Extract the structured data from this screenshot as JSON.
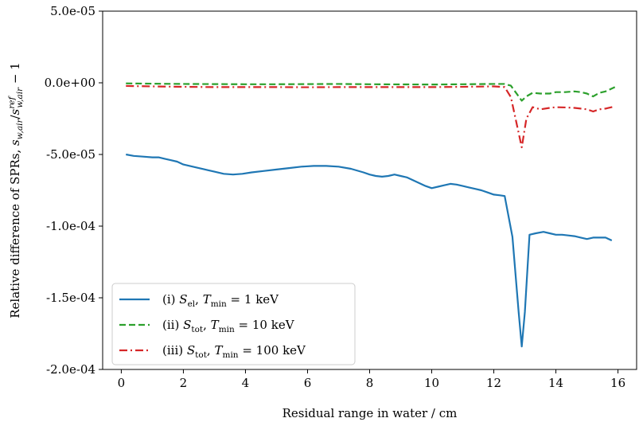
{
  "chart_data": {
    "type": "line",
    "xlabel": "Residual range in water / cm",
    "ylabel": {
      "prefix": "Relative difference of SPRs, ",
      "num_main": "s",
      "num_sub": "w,air",
      "den_main": "s",
      "den_sub": "w,air",
      "den_sup": "ref",
      "suffix": " − 1"
    },
    "xlim": [
      -0.6,
      16.6
    ],
    "ylim": [
      -0.0002,
      5e-05
    ],
    "x_ticks": [
      0,
      2,
      4,
      6,
      8,
      10,
      12,
      14,
      16
    ],
    "x_tick_labels": [
      "0",
      "2",
      "4",
      "6",
      "8",
      "10",
      "12",
      "14",
      "16"
    ],
    "y_ticks": [
      5e-05,
      0,
      -5e-05,
      -0.0001,
      -0.00015,
      -0.0002
    ],
    "y_tick_labels": [
      "5.0e-05",
      "0.0e+00",
      "-5.0e-05",
      "-1.0e-04",
      "-1.5e-04",
      "-2.0e-04"
    ],
    "grid": false,
    "legend_position": "bottom-left",
    "series": [
      {
        "legend_prefix": "(i) ",
        "legend_main": "S",
        "legend_sub": "el",
        "legend_mid": ", T",
        "legend_sub2": "min",
        "legend_suffix": " = 1 keV",
        "color": "#1f77b4",
        "dash": "solid",
        "x": [
          0.15,
          0.4,
          0.7,
          1.0,
          1.2,
          1.4,
          1.6,
          1.8,
          2.0,
          2.4,
          2.8,
          3.0,
          3.3,
          3.6,
          3.9,
          4.2,
          4.6,
          5.0,
          5.4,
          5.8,
          6.2,
          6.6,
          7.0,
          7.4,
          7.8,
          8.0,
          8.2,
          8.4,
          8.6,
          8.8,
          9.0,
          9.2,
          9.4,
          9.6,
          9.8,
          10.0,
          10.2,
          10.4,
          10.6,
          10.8,
          11.0,
          11.2,
          11.4,
          11.6,
          11.8,
          12.0,
          12.2,
          12.35,
          12.6,
          12.8,
          12.9,
          13.0,
          13.15,
          13.35,
          13.6,
          13.8,
          14.0,
          14.2,
          14.4,
          14.6,
          14.8,
          15.0,
          15.2,
          15.4,
          15.6,
          15.8
        ],
        "y": [
          -5e-05,
          -5.1e-05,
          -5.15e-05,
          -5.2e-05,
          -5.2e-05,
          -5.3e-05,
          -5.4e-05,
          -5.5e-05,
          -5.7e-05,
          -5.9e-05,
          -6.1e-05,
          -6.2e-05,
          -6.35e-05,
          -6.4e-05,
          -6.35e-05,
          -6.25e-05,
          -6.15e-05,
          -6.05e-05,
          -5.95e-05,
          -5.85e-05,
          -5.8e-05,
          -5.8e-05,
          -5.85e-05,
          -6e-05,
          -6.25e-05,
          -6.4e-05,
          -6.5e-05,
          -6.55e-05,
          -6.5e-05,
          -6.4e-05,
          -6.5e-05,
          -6.6e-05,
          -6.8e-05,
          -7e-05,
          -7.2e-05,
          -7.35e-05,
          -7.25e-05,
          -7.15e-05,
          -7.05e-05,
          -7.1e-05,
          -7.2e-05,
          -7.3e-05,
          -7.4e-05,
          -7.5e-05,
          -7.65e-05,
          -7.8e-05,
          -7.85e-05,
          -7.9e-05,
          -0.0001075,
          -0.00016,
          -0.000184,
          -0.00016,
          -0.000106,
          -0.000105,
          -0.000104,
          -0.000105,
          -0.000106,
          -0.000106,
          -0.0001065,
          -0.000107,
          -0.000108,
          -0.000109,
          -0.000108,
          -0.000108,
          -0.000108,
          -0.00011
        ]
      },
      {
        "legend_prefix": "(ii) ",
        "legend_main": "S",
        "legend_sub": "tot",
        "legend_mid": ", T",
        "legend_sub2": "min",
        "legend_suffix": " = 10 keV",
        "color": "#2ca02c",
        "dash": "dashed",
        "x": [
          0.15,
          1.0,
          2.0,
          3.0,
          4.0,
          5.0,
          6.0,
          7.0,
          8.0,
          9.0,
          10.0,
          11.0,
          12.0,
          12.35,
          12.55,
          12.75,
          12.9,
          13.05,
          13.25,
          13.5,
          13.8,
          14.0,
          14.3,
          14.6,
          14.8,
          15.0,
          15.2,
          15.4,
          15.6,
          15.9
        ],
        "y": [
          -4e-07,
          -6e-07,
          -8e-07,
          -9e-07,
          -1e-06,
          -1e-06,
          -9e-07,
          -8e-07,
          -1e-06,
          -1.1e-06,
          -1.2e-06,
          -1e-06,
          -8e-07,
          -8e-07,
          -2e-06,
          -8e-06,
          -1.25e-05,
          -9.5e-06,
          -7e-06,
          -7.5e-06,
          -7.5e-06,
          -6.5e-06,
          -6.5e-06,
          -6e-06,
          -6.5e-06,
          -7.5e-06,
          -9.5e-06,
          -7e-06,
          -6e-06,
          -3e-06
        ]
      },
      {
        "legend_prefix": "(iii) ",
        "legend_main": "S",
        "legend_sub": "tot",
        "legend_mid": ", T",
        "legend_sub2": "min",
        "legend_suffix": " = 100 keV",
        "color": "#d62728",
        "dash": "dashdot",
        "x": [
          0.15,
          1.0,
          2.0,
          3.0,
          4.0,
          5.0,
          6.0,
          7.0,
          8.0,
          9.0,
          10.0,
          11.0,
          12.0,
          12.35,
          12.55,
          12.75,
          12.9,
          13.05,
          13.25,
          13.5,
          13.8,
          14.0,
          14.3,
          14.6,
          14.8,
          15.0,
          15.2,
          15.4,
          15.6,
          15.9
        ],
        "y": [
          -2.2e-06,
          -2.5e-06,
          -2.8e-06,
          -3e-06,
          -3e-06,
          -3e-06,
          -3.1e-06,
          -3e-06,
          -3e-06,
          -3e-06,
          -3e-06,
          -2.8e-06,
          -2.5e-06,
          -3e-06,
          -1e-05,
          -3e-05,
          -4.5e-05,
          -2.5e-05,
          -1.7e-05,
          -1.85e-05,
          -1.75e-05,
          -1.7e-05,
          -1.72e-05,
          -1.75e-05,
          -1.8e-05,
          -1.85e-05,
          -2e-05,
          -1.85e-05,
          -1.8e-05,
          -1.65e-05
        ]
      }
    ]
  }
}
